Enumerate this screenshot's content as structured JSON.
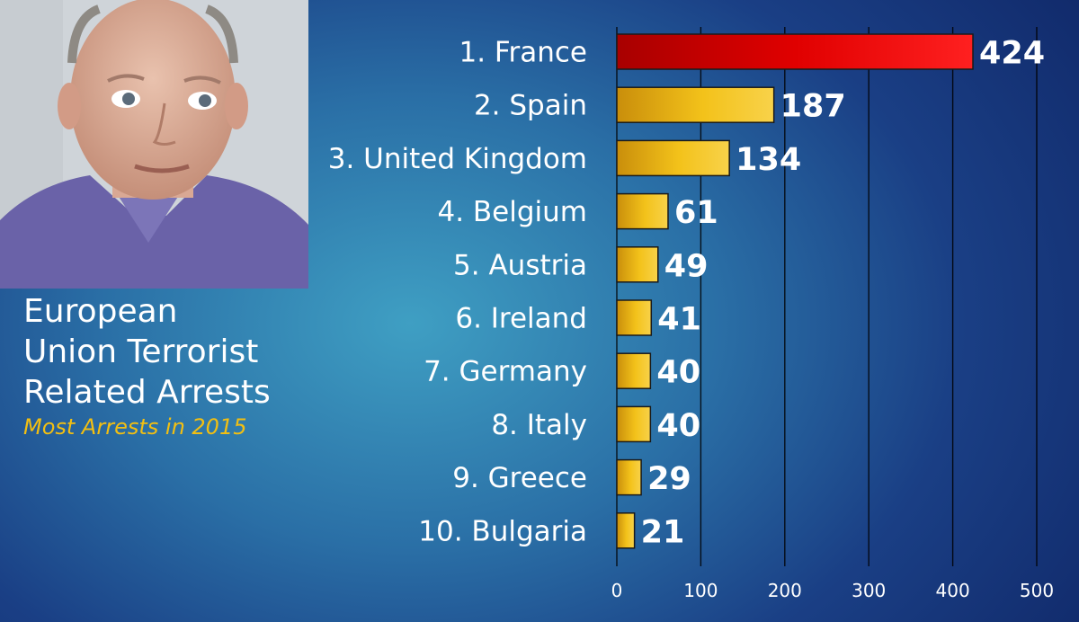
{
  "title_lines": [
    "European",
    "Union Terrorist",
    "Related Arrests"
  ],
  "subtitle": "Most Arrests in 2015",
  "colors": {
    "highlight_bar": "#e00000",
    "bar": "#f2bf12",
    "subtitle": "#f2bf12",
    "text": "#ffffff"
  },
  "chart_data": {
    "type": "bar",
    "orientation": "horizontal",
    "title": "European Union Terrorist Related Arrests",
    "subtitle": "Most Arrests in 2015",
    "categories": [
      "1. France",
      "2. Spain",
      "3. United Kingdom",
      "4. Belgium",
      "5. Austria",
      "6. Ireland",
      "7. Germany",
      "8. Italy",
      "9. Greece",
      "10. Bulgaria"
    ],
    "values": [
      424,
      187,
      134,
      61,
      49,
      41,
      40,
      40,
      29,
      21
    ],
    "value_labels": [
      "424",
      "187",
      "134",
      "61",
      "49",
      "41",
      "40",
      "40",
      "29",
      "21"
    ],
    "highlight_index": 0,
    "xlim": [
      0,
      500
    ],
    "xticks": [
      0,
      100,
      200,
      300,
      400,
      500
    ],
    "xtick_labels": [
      "0",
      "100",
      "200",
      "300",
      "400",
      "500"
    ],
    "grid": "vertical",
    "xlabel": "",
    "ylabel": ""
  }
}
